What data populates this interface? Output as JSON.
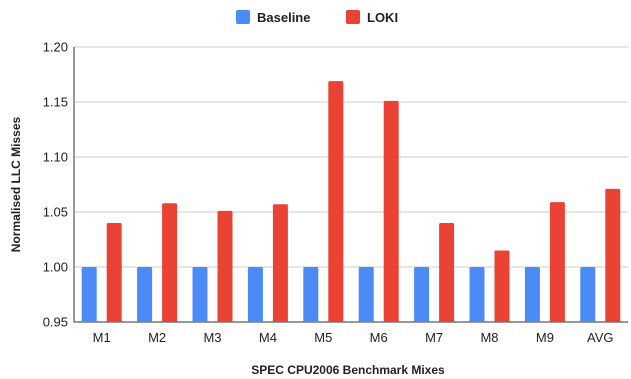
{
  "chart_data": {
    "type": "bar",
    "title": "",
    "xlabel": "SPEC CPU2006 Benchmark Mixes",
    "ylabel": "Normalised LLC Misses",
    "categories": [
      "M1",
      "M2",
      "M3",
      "M4",
      "M5",
      "M6",
      "M7",
      "M8",
      "M9",
      "AVG"
    ],
    "ylim": [
      0.95,
      1.2
    ],
    "yticks": [
      "0.95",
      "1.00",
      "1.05",
      "1.10",
      "1.15",
      "1.20"
    ],
    "grid": "horizontal",
    "legend_position": "top-center",
    "series": [
      {
        "name": "Baseline",
        "color": "#4c8bf5",
        "values": [
          1.0,
          1.0,
          1.0,
          1.0,
          1.0,
          1.0,
          1.0,
          1.0,
          1.0,
          1.0
        ]
      },
      {
        "name": "LOKI",
        "color": "#ea4335",
        "values": [
          1.04,
          1.058,
          1.051,
          1.057,
          1.169,
          1.151,
          1.04,
          1.015,
          1.059,
          1.071
        ]
      }
    ]
  }
}
